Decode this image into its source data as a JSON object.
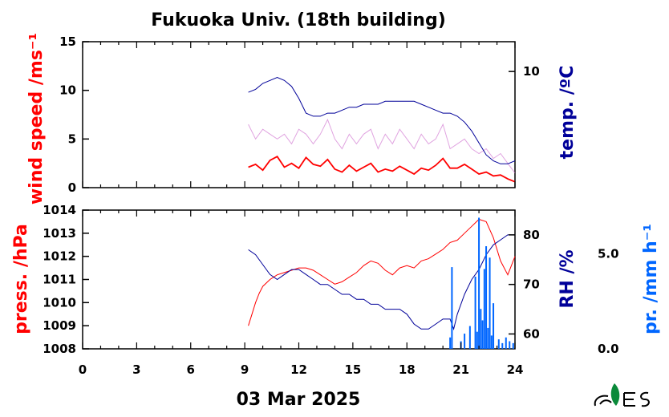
{
  "title": "Fukuoka Univ. (18th building)",
  "date_label": "03 Mar 2025",
  "colors": {
    "wind": "#ff0000",
    "wind_gust": "#cc66cc",
    "temp": "#000099",
    "press": "#ff0000",
    "rh": "#000099",
    "rain": "#0066ff",
    "axis": "#000000"
  },
  "chart_data": [
    {
      "type": "line",
      "panel": "top",
      "xlim": [
        0,
        24
      ],
      "x_ticks": [
        "0",
        "3",
        "6",
        "9",
        "12",
        "15",
        "18",
        "21",
        "24"
      ],
      "left_axis": {
        "label": "wind speed /ms⁻¹",
        "ylim": [
          0,
          15
        ],
        "ticks": [
          "0",
          "5",
          "10",
          "15"
        ]
      },
      "right_axis": {
        "label": "temp. /ºC",
        "ylim": [
          6.1,
          11.0
        ],
        "ticks": [
          "10"
        ]
      },
      "series": [
        {
          "axis": "left",
          "style": "wind_gust",
          "x": [
            9.2,
            9.6,
            10.0,
            10.4,
            10.8,
            11.2,
            11.6,
            12.0,
            12.4,
            12.8,
            13.2,
            13.6,
            14.0,
            14.4,
            14.8,
            15.2,
            15.6,
            16.0,
            16.4,
            16.8,
            17.2,
            17.6,
            18.0,
            18.4,
            18.8,
            19.2,
            19.6,
            20.0,
            20.4,
            20.8,
            21.2,
            21.6,
            22.0,
            22.4,
            22.8,
            23.2,
            23.6,
            24.0
          ],
          "y": [
            6.5,
            5.0,
            6.0,
            5.5,
            5.0,
            5.5,
            4.5,
            6.0,
            5.5,
            4.5,
            5.5,
            7.0,
            5.0,
            4.0,
            5.5,
            4.5,
            5.5,
            6.0,
            4.0,
            5.5,
            4.5,
            6.0,
            5.0,
            4.0,
            5.5,
            4.5,
            5.0,
            6.5,
            4.0,
            4.5,
            5.0,
            4.0,
            3.5,
            4.0,
            3.0,
            3.5,
            2.5,
            1.5
          ]
        },
        {
          "axis": "left",
          "style": "wind",
          "x": [
            9.2,
            9.6,
            10.0,
            10.4,
            10.8,
            11.2,
            11.6,
            12.0,
            12.4,
            12.8,
            13.2,
            13.6,
            14.0,
            14.4,
            14.8,
            15.2,
            15.6,
            16.0,
            16.4,
            16.8,
            17.2,
            17.6,
            18.0,
            18.4,
            18.8,
            19.2,
            19.6,
            20.0,
            20.4,
            20.8,
            21.2,
            21.6,
            22.0,
            22.4,
            22.8,
            23.2,
            23.6,
            24.0
          ],
          "y": [
            2.1,
            2.4,
            1.8,
            2.8,
            3.2,
            2.1,
            2.5,
            2.0,
            3.1,
            2.4,
            2.2,
            2.9,
            1.9,
            1.6,
            2.3,
            1.7,
            2.1,
            2.5,
            1.6,
            1.9,
            1.7,
            2.2,
            1.8,
            1.4,
            2.0,
            1.8,
            2.3,
            3.0,
            2.0,
            2.0,
            2.4,
            1.9,
            1.4,
            1.6,
            1.2,
            1.3,
            0.9,
            0.6
          ]
        },
        {
          "axis": "right",
          "style": "temp",
          "x": [
            9.2,
            9.6,
            10.0,
            10.4,
            10.8,
            11.2,
            11.6,
            12.0,
            12.4,
            12.8,
            13.2,
            13.6,
            14.0,
            14.4,
            14.8,
            15.2,
            15.6,
            16.0,
            16.4,
            16.8,
            17.2,
            17.6,
            18.0,
            18.4,
            18.8,
            19.2,
            19.6,
            20.0,
            20.4,
            20.8,
            21.2,
            21.6,
            22.0,
            22.4,
            22.8,
            23.2,
            23.6,
            24.0
          ],
          "y": [
            9.3,
            9.4,
            9.6,
            9.7,
            9.8,
            9.7,
            9.5,
            9.1,
            8.6,
            8.5,
            8.5,
            8.6,
            8.6,
            8.7,
            8.8,
            8.8,
            8.9,
            8.9,
            8.9,
            9.0,
            9.0,
            9.0,
            9.0,
            9.0,
            8.9,
            8.8,
            8.7,
            8.6,
            8.6,
            8.5,
            8.3,
            8.0,
            7.6,
            7.2,
            7.0,
            6.9,
            6.9,
            7.0
          ]
        }
      ]
    },
    {
      "type": "line",
      "panel": "bottom",
      "xlim": [
        0,
        24
      ],
      "x_ticks": [
        "0",
        "3",
        "6",
        "9",
        "12",
        "15",
        "18",
        "21",
        "24"
      ],
      "left_axis": {
        "label": "press. /hPa",
        "ylim": [
          1008,
          1014
        ],
        "ticks": [
          "1008",
          "1009",
          "1010",
          "1011",
          "1012",
          "1013",
          "1014"
        ]
      },
      "right_axis": {
        "label": "RH /%",
        "ylim": [
          57,
          85
        ],
        "ticks": [
          "60",
          "70",
          "80"
        ]
      },
      "far_right_axis": {
        "label": "pr. /mm h⁻¹",
        "ylim": [
          0,
          7.3
        ],
        "ticks": [
          "0.0",
          "5.0"
        ]
      },
      "series": [
        {
          "axis": "left",
          "style": "press",
          "x": [
            9.2,
            9.4,
            9.6,
            9.8,
            10.0,
            10.4,
            10.8,
            11.2,
            11.6,
            12.0,
            12.4,
            12.8,
            13.2,
            13.6,
            14.0,
            14.4,
            14.8,
            15.2,
            15.6,
            16.0,
            16.4,
            16.8,
            17.2,
            17.6,
            18.0,
            18.4,
            18.8,
            19.2,
            19.6,
            20.0,
            20.4,
            20.8,
            21.2,
            21.6,
            22.0,
            22.4,
            22.8,
            23.2,
            23.6,
            24.0
          ],
          "y": [
            1009.0,
            1009.5,
            1010.0,
            1010.4,
            1010.7,
            1011.0,
            1011.2,
            1011.3,
            1011.4,
            1011.5,
            1011.5,
            1011.4,
            1011.2,
            1011.0,
            1010.8,
            1010.9,
            1011.1,
            1011.3,
            1011.6,
            1011.8,
            1011.7,
            1011.4,
            1011.2,
            1011.5,
            1011.6,
            1011.5,
            1011.8,
            1011.9,
            1012.1,
            1012.3,
            1012.6,
            1012.7,
            1013.0,
            1013.3,
            1013.6,
            1013.5,
            1012.8,
            1011.8,
            1011.2,
            1012.0
          ]
        },
        {
          "axis": "right",
          "style": "rh",
          "x": [
            9.2,
            9.6,
            10.0,
            10.4,
            10.8,
            11.2,
            11.6,
            12.0,
            12.4,
            12.8,
            13.2,
            13.6,
            14.0,
            14.4,
            14.8,
            15.2,
            15.6,
            16.0,
            16.4,
            16.8,
            17.2,
            17.6,
            18.0,
            18.4,
            18.8,
            19.2,
            19.6,
            20.0,
            20.4,
            20.6,
            20.8,
            21.2,
            21.6,
            22.0,
            22.4,
            22.8,
            23.2,
            23.6,
            24.0
          ],
          "y": [
            77,
            76,
            74,
            72,
            71,
            72,
            73,
            73,
            72,
            71,
            70,
            70,
            69,
            68,
            68,
            67,
            67,
            66,
            66,
            65,
            65,
            65,
            64,
            62,
            61,
            61,
            62,
            63,
            63,
            61,
            64,
            68,
            71,
            73,
            76,
            78,
            79,
            80,
            80
          ]
        },
        {
          "axis": "far_right",
          "style": "rain",
          "type": "bar",
          "x": [
            20.4,
            20.5,
            21.0,
            21.2,
            21.5,
            21.8,
            21.9,
            22.0,
            22.1,
            22.2,
            22.3,
            22.4,
            22.5,
            22.6,
            22.7,
            22.8,
            23.1,
            23.3,
            23.5,
            23.7,
            23.9
          ],
          "y": [
            0.6,
            4.3,
            0.4,
            0.8,
            1.2,
            3.8,
            0.9,
            6.9,
            2.1,
            1.5,
            4.2,
            5.4,
            1.1,
            4.8,
            0.7,
            2.4,
            0.5,
            0.3,
            0.6,
            0.4,
            0.3
          ]
        }
      ]
    }
  ]
}
